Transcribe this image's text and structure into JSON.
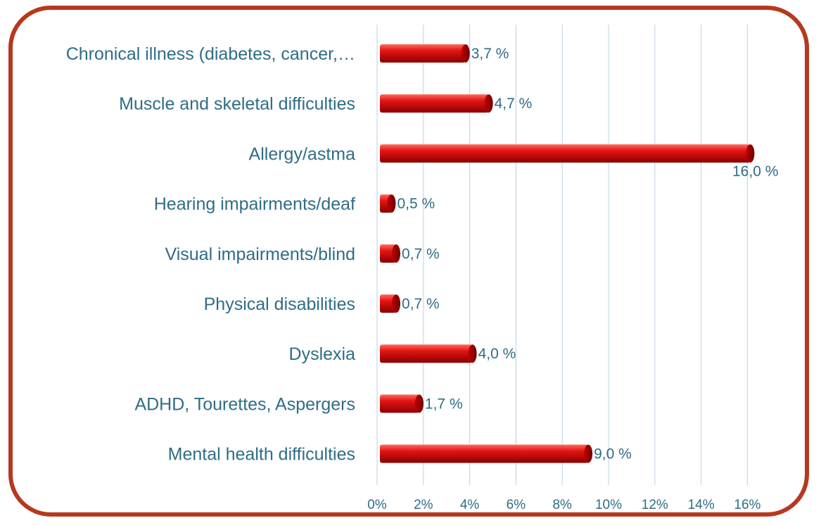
{
  "chart_data": {
    "type": "bar",
    "orientation": "horizontal",
    "categories": [
      "Chronical illness (diabetes, cancer,…",
      "Muscle and skeletal difficulties",
      "Allergy/astma",
      "Hearing impairments/deaf",
      "Visual impairments/blind",
      "Physical disabilities",
      "Dyslexia",
      "ADHD, Tourettes, Aspergers",
      "Mental health difficulties"
    ],
    "values": [
      3.7,
      4.7,
      16.0,
      0.5,
      0.7,
      0.7,
      4.0,
      1.7,
      9.0
    ],
    "data_labels": [
      "3,7 %",
      "4,7 %",
      "16,0 %",
      "0,5 %",
      "0,7 %",
      "0,7 %",
      "4,0 %",
      "1,7 %",
      "9,0 %"
    ],
    "x_ticks": [
      "0%",
      "2%",
      "4%",
      "6%",
      "8%",
      "10%",
      "12%",
      "14%",
      "16%"
    ],
    "xlim": [
      0,
      16
    ],
    "grid": "vertical",
    "legend": "none",
    "title": "",
    "xlabel": "",
    "ylabel": "",
    "colors": {
      "bar": "#e01010",
      "bar_dark": "#8e0000",
      "frame": "#b5391e",
      "text": "#2e6d86",
      "grid": "#c8d8e4"
    }
  }
}
